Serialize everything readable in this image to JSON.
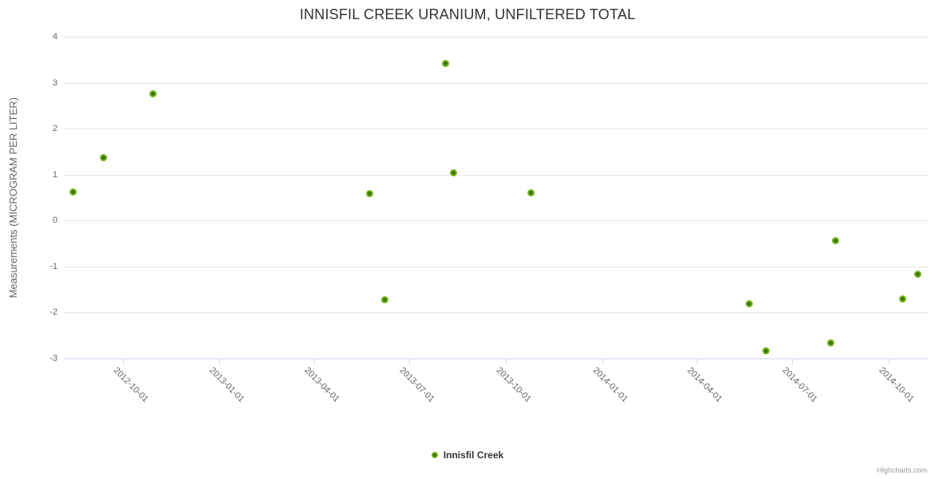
{
  "title": "INNISFIL CREEK URANIUM, UNFILTERED TOTAL",
  "credits_label": "Highcharts.com",
  "colors": {
    "title_text": "#333333",
    "axis_label_text": "#666666",
    "gridline": "#e6e6e6",
    "axis_line": "#ccd6eb",
    "series_green": "#72b51c",
    "marker_center": "#3e7200",
    "legend_text": "#333333",
    "credits_text": "#999999",
    "background": "#ffffff"
  },
  "legend": {
    "items": [
      {
        "label": "Innisfil Creek",
        "color": "#72b51c"
      }
    ]
  },
  "chart_data": {
    "type": "scatter",
    "title": "INNISFIL CREEK URANIUM, UNFILTERED TOTAL",
    "xlabel": "",
    "ylabel": "Measurements (MICROGRAM PER LITER)",
    "ylim": [
      -3,
      4
    ],
    "ytick_interval": 1,
    "yticks": [
      4,
      3,
      2,
      1,
      0,
      -1,
      -2,
      -3
    ],
    "xlim": [
      "2012-08-06",
      "2014-11-08"
    ],
    "xticks": [
      "2012-10-01",
      "2013-01-01",
      "2013-04-01",
      "2013-07-01",
      "2013-10-01",
      "2014-01-01",
      "2014-04-01",
      "2014-07-01",
      "2014-10-01"
    ],
    "grid": true,
    "legend_position": "bottom-center",
    "series": [
      {
        "name": "Innisfil Creek",
        "color": "#72b51c",
        "points": [
          {
            "x": "2012-08-15",
            "y": 0.62
          },
          {
            "x": "2012-09-13",
            "y": 1.37
          },
          {
            "x": "2012-10-30",
            "y": 2.76
          },
          {
            "x": "2013-05-24",
            "y": 0.58
          },
          {
            "x": "2013-06-08",
            "y": -1.72
          },
          {
            "x": "2013-08-05",
            "y": 3.41
          },
          {
            "x": "2013-08-12",
            "y": 1.04
          },
          {
            "x": "2013-10-25",
            "y": 0.6
          },
          {
            "x": "2014-05-21",
            "y": -1.81
          },
          {
            "x": "2014-06-06",
            "y": -2.83
          },
          {
            "x": "2014-08-07",
            "y": -2.66
          },
          {
            "x": "2014-08-11",
            "y": -0.43
          },
          {
            "x": "2014-10-14",
            "y": -1.7
          },
          {
            "x": "2014-10-29",
            "y": -1.16
          }
        ]
      }
    ]
  }
}
